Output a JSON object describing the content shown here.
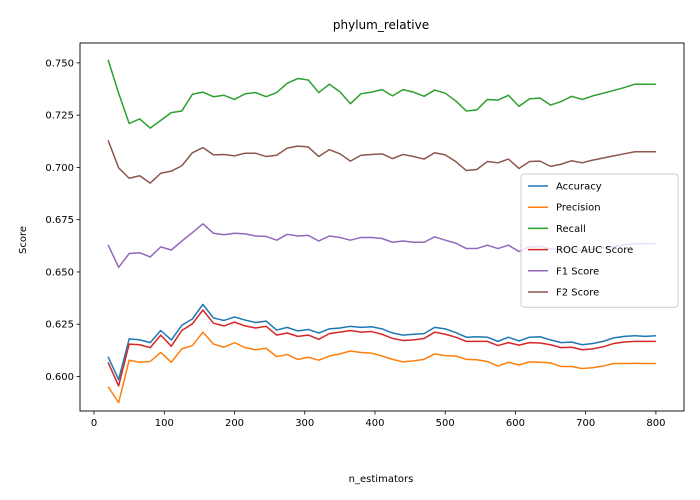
{
  "chart_data": {
    "type": "line",
    "title": "phylum_relative",
    "xlabel": "n_estimators",
    "ylabel": "Score",
    "xlim": [
      -20,
      840
    ],
    "ylim": [
      0.5835,
      0.7595
    ],
    "x_ticks": [
      0,
      100,
      200,
      300,
      400,
      500,
      600,
      700,
      800
    ],
    "y_ticks": [
      0.6,
      0.625,
      0.65,
      0.675,
      0.7,
      0.725,
      0.75
    ],
    "x_tick_labels": [
      "0",
      "100",
      "200",
      "300",
      "400",
      "500",
      "600",
      "700",
      "800"
    ],
    "y_tick_labels": [
      "0.600",
      "0.625",
      "0.650",
      "0.675",
      "0.700",
      "0.725",
      "0.750"
    ],
    "legend_position": "center-right",
    "x": [
      20,
      35,
      50,
      65,
      80,
      95,
      110,
      125,
      140,
      155,
      170,
      185,
      200,
      215,
      230,
      245,
      260,
      275,
      290,
      305,
      320,
      335,
      350,
      365,
      380,
      395,
      410,
      425,
      440,
      455,
      470,
      485,
      500,
      515,
      530,
      545,
      560,
      575,
      590,
      605,
      620,
      635,
      650,
      665,
      680,
      695,
      710,
      725,
      740,
      755,
      770,
      785,
      800
    ],
    "series": [
      {
        "name": "Accuracy",
        "color": "#1f77b4",
        "values": [
          0.6095,
          0.5985,
          0.618,
          0.6175,
          0.6162,
          0.622,
          0.6175,
          0.6245,
          0.6275,
          0.6345,
          0.628,
          0.6268,
          0.6285,
          0.627,
          0.6258,
          0.6265,
          0.6222,
          0.6235,
          0.6218,
          0.6225,
          0.6208,
          0.6228,
          0.6232,
          0.624,
          0.6235,
          0.6238,
          0.6228,
          0.6208,
          0.6198,
          0.6202,
          0.6205,
          0.6235,
          0.6228,
          0.621,
          0.6188,
          0.619,
          0.6188,
          0.6168,
          0.6188,
          0.617,
          0.6188,
          0.619,
          0.6175,
          0.6162,
          0.6165,
          0.6152,
          0.6158,
          0.6168,
          0.6185,
          0.6192,
          0.6195,
          0.6192,
          0.6195
        ]
      },
      {
        "name": "Precision",
        "color": "#ff7f0e",
        "values": [
          0.5952,
          0.5875,
          0.6078,
          0.6068,
          0.6072,
          0.6115,
          0.6068,
          0.6132,
          0.6148,
          0.6212,
          0.6155,
          0.614,
          0.6162,
          0.6138,
          0.6128,
          0.6135,
          0.6095,
          0.6105,
          0.6082,
          0.6092,
          0.6078,
          0.6098,
          0.6108,
          0.6122,
          0.6115,
          0.6112,
          0.6098,
          0.6082,
          0.607,
          0.6075,
          0.6082,
          0.6108,
          0.61,
          0.6098,
          0.6082,
          0.608,
          0.6072,
          0.605,
          0.6068,
          0.6055,
          0.607,
          0.6068,
          0.6065,
          0.6048,
          0.6048,
          0.6038,
          0.6042,
          0.605,
          0.6062,
          0.6062,
          0.6063,
          0.6062,
          0.6062
        ]
      },
      {
        "name": "Recall",
        "color": "#2ca02c",
        "values": [
          0.7515,
          0.7355,
          0.721,
          0.7232,
          0.7188,
          0.7225,
          0.7262,
          0.727,
          0.735,
          0.736,
          0.7338,
          0.7345,
          0.7325,
          0.7352,
          0.7358,
          0.7338,
          0.7358,
          0.7402,
          0.7425,
          0.7418,
          0.7358,
          0.7398,
          0.7362,
          0.7305,
          0.7352,
          0.736,
          0.7372,
          0.7342,
          0.7372,
          0.736,
          0.734,
          0.737,
          0.7355,
          0.7318,
          0.727,
          0.7275,
          0.7325,
          0.7322,
          0.7345,
          0.7292,
          0.7328,
          0.7332,
          0.7298,
          0.7315,
          0.734,
          0.7325,
          0.7342,
          0.7355,
          0.7368,
          0.7382,
          0.7398,
          0.7398,
          0.7398
        ]
      },
      {
        "name": "ROC AUC Score",
        "color": "#d62728",
        "values": [
          0.6068,
          0.5955,
          0.6155,
          0.6152,
          0.6138,
          0.6198,
          0.6145,
          0.622,
          0.6252,
          0.6318,
          0.6255,
          0.6242,
          0.626,
          0.6242,
          0.6232,
          0.624,
          0.6198,
          0.6208,
          0.6192,
          0.6198,
          0.6178,
          0.6205,
          0.6212,
          0.622,
          0.6212,
          0.6215,
          0.6202,
          0.6182,
          0.6172,
          0.6175,
          0.6182,
          0.6212,
          0.6202,
          0.6188,
          0.6168,
          0.6168,
          0.6168,
          0.6148,
          0.6162,
          0.615,
          0.6162,
          0.616,
          0.6152,
          0.6138,
          0.614,
          0.6128,
          0.6132,
          0.6142,
          0.6158,
          0.6165,
          0.6168,
          0.6168,
          0.6168
        ]
      },
      {
        "name": "F1 Score",
        "color": "#9467bd",
        "values": [
          0.663,
          0.6522,
          0.6588,
          0.6592,
          0.6572,
          0.662,
          0.6605,
          0.6648,
          0.6688,
          0.673,
          0.6685,
          0.6678,
          0.6685,
          0.6682,
          0.6672,
          0.667,
          0.6652,
          0.668,
          0.6672,
          0.6675,
          0.6648,
          0.6672,
          0.6665,
          0.6652,
          0.6665,
          0.6665,
          0.666,
          0.6642,
          0.6648,
          0.6642,
          0.6642,
          0.6668,
          0.6652,
          0.6638,
          0.6612,
          0.6612,
          0.6628,
          0.6612,
          0.6628,
          0.6598,
          0.662,
          0.6622,
          0.661,
          0.661,
          0.6615,
          0.6602,
          0.661,
          0.6615,
          0.662,
          0.663,
          0.6635,
          0.6635,
          0.6635
        ]
      },
      {
        "name": "F2 Score",
        "color": "#8c564b",
        "values": [
          0.713,
          0.6998,
          0.6948,
          0.696,
          0.6925,
          0.6972,
          0.6982,
          0.7008,
          0.707,
          0.7095,
          0.706,
          0.7062,
          0.7055,
          0.7068,
          0.7068,
          0.7052,
          0.7058,
          0.7092,
          0.7102,
          0.7098,
          0.7052,
          0.7085,
          0.7065,
          0.703,
          0.7058,
          0.7062,
          0.7065,
          0.7042,
          0.7062,
          0.7052,
          0.704,
          0.707,
          0.706,
          0.7028,
          0.6985,
          0.699,
          0.7028,
          0.7022,
          0.704,
          0.6995,
          0.7028,
          0.703,
          0.7005,
          0.7015,
          0.7032,
          0.7022,
          0.7035,
          0.7045,
          0.7055,
          0.7065,
          0.7075,
          0.7075,
          0.7075
        ]
      }
    ]
  }
}
